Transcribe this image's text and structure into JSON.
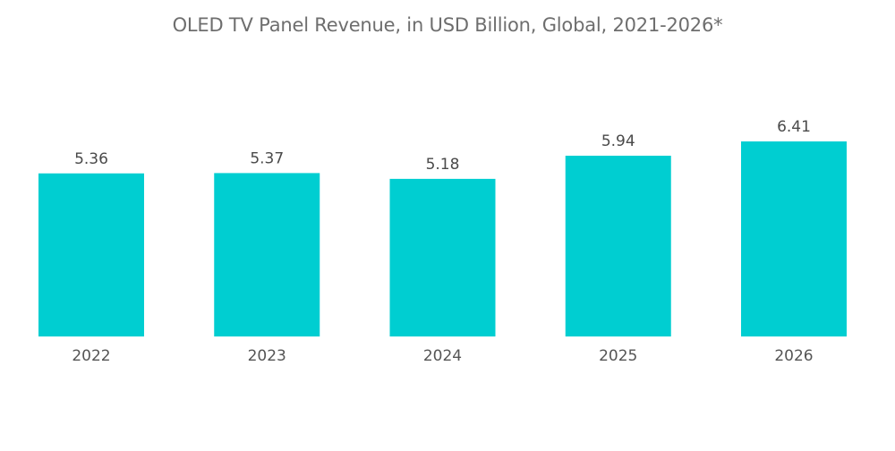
{
  "chart_data": {
    "type": "bar",
    "title": "OLED TV Panel Revenue, in USD Billion, Global, 2021-2026*",
    "categories": [
      "2022",
      "2023",
      "2024",
      "2025",
      "2026"
    ],
    "values": [
      5.36,
      5.37,
      5.18,
      5.94,
      6.41
    ],
    "value_labels": [
      "5.36",
      "5.37",
      "5.18",
      "5.94",
      "6.41"
    ],
    "xlabel": "",
    "ylabel": "",
    "ylim": [
      0,
      6.41
    ],
    "grid": false,
    "legend": "none",
    "bar_color": "#00CED1"
  }
}
